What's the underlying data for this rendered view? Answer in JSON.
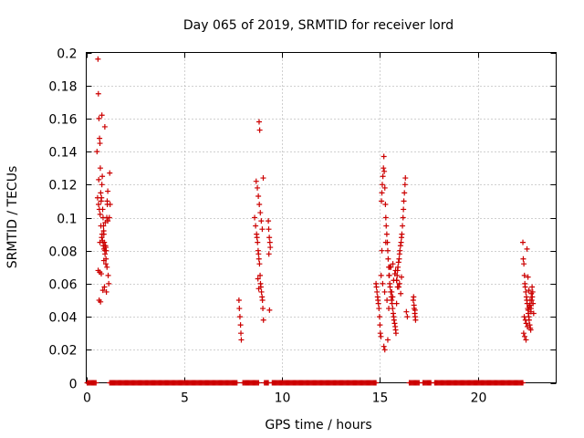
{
  "chart_data": {
    "type": "scatter",
    "title": "Day 065 of 2019, SRMTID for receiver lord",
    "xlabel": "GPS time / hours",
    "ylabel": "SRMTID / TECUs",
    "xlim": [
      0,
      24
    ],
    "ylim": [
      0,
      0.2
    ],
    "xticks": [
      0,
      5,
      10,
      15,
      20
    ],
    "xtick_labels": [
      "0",
      "5",
      "10",
      "15",
      "20"
    ],
    "yticks": [
      0,
      0.02,
      0.04,
      0.06,
      0.08,
      0.1,
      0.12,
      0.14,
      0.16,
      0.18,
      0.2
    ],
    "ytick_labels": [
      "0",
      "0.02",
      "0.04",
      "0.06",
      "0.08",
      "0.1",
      "0.12",
      "0.14",
      "0.16",
      "0.18",
      "0.2"
    ],
    "grid": true,
    "legend": "none",
    "marker": "plus",
    "marker_color": "#cc0000",
    "series": [
      {
        "x": [
          0.55,
          0.6,
          0.62,
          0.65,
          0.68,
          0.7,
          0.72,
          0.74,
          0.76,
          0.78,
          0.8,
          0.82,
          0.84,
          0.86,
          0.88,
          0.9,
          0.92,
          0.95,
          0.98,
          1.0,
          1.02,
          1.05,
          1.08,
          1.1,
          1.12,
          1.15,
          1.2,
          0.58,
          0.63,
          0.67,
          0.71,
          0.75,
          0.79,
          0.83,
          0.87,
          0.91,
          0.96,
          1.01,
          1.06,
          0.61,
          0.69,
          0.77,
          0.85,
          0.93,
          1.03,
          0.66,
          0.73,
          0.81,
          0.89,
          0.97,
          1.07,
          1.18,
          1.22,
          0.64,
          0.8,
          0.95,
          1.1,
          0.7,
          0.9,
          1.0
        ],
        "y": [
          0.14,
          0.196,
          0.175,
          0.16,
          0.148,
          0.145,
          0.13,
          0.115,
          0.11,
          0.112,
          0.12,
          0.125,
          0.105,
          0.1,
          0.095,
          0.09,
          0.085,
          0.08,
          0.083,
          0.082,
          0.08,
          0.1,
          0.108,
          0.098,
          0.065,
          0.06,
          0.127,
          0.112,
          0.108,
          0.105,
          0.102,
          0.095,
          0.088,
          0.086,
          0.083,
          0.081,
          0.078,
          0.075,
          0.07,
          0.068,
          0.067,
          0.066,
          0.056,
          0.058,
          0.055,
          0.05,
          0.049,
          0.09,
          0.092,
          0.097,
          0.11,
          0.1,
          0.108,
          0.123,
          0.162,
          0.155,
          0.116,
          0.085,
          0.074,
          0.072
        ]
      },
      {
        "x": [
          7.8,
          7.82,
          7.85,
          7.88,
          7.9,
          7.92,
          8.6,
          8.65,
          8.7,
          8.72,
          8.75,
          8.78,
          8.8,
          8.82,
          8.85,
          8.88,
          8.9,
          8.92,
          8.95,
          8.98,
          9.0,
          9.02,
          9.05,
          8.68,
          8.74,
          8.79,
          8.84,
          8.89,
          8.94,
          8.99,
          9.3,
          9.32,
          9.35,
          9.38,
          9.4,
          9.33,
          9.36,
          8.83,
          8.86,
          9.04,
          8.77,
          8.81
        ],
        "y": [
          0.05,
          0.045,
          0.04,
          0.035,
          0.03,
          0.026,
          0.1,
          0.095,
          0.09,
          0.088,
          0.085,
          0.08,
          0.078,
          0.075,
          0.072,
          0.065,
          0.06,
          0.058,
          0.055,
          0.052,
          0.05,
          0.045,
          0.038,
          0.122,
          0.118,
          0.113,
          0.108,
          0.103,
          0.098,
          0.093,
          0.098,
          0.093,
          0.088,
          0.085,
          0.082,
          0.078,
          0.044,
          0.158,
          0.153,
          0.124,
          0.063,
          0.057
        ]
      },
      {
        "x": [
          14.8,
          14.82,
          14.85,
          14.88,
          14.9,
          14.92,
          14.95,
          14.98,
          15.0,
          15.02,
          15.05,
          15.08,
          15.1,
          15.12,
          15.15,
          15.18,
          15.2,
          15.22,
          15.25,
          15.28,
          15.3,
          15.32,
          15.35,
          15.38,
          15.4,
          15.42,
          15.45,
          15.48,
          15.5,
          15.52,
          15.55,
          15.58,
          15.6,
          15.62,
          15.65,
          15.68,
          15.7,
          15.72,
          15.75,
          15.78,
          15.8,
          15.82,
          15.85,
          15.88,
          15.9,
          15.92,
          15.95,
          15.98,
          16.0,
          16.02,
          16.05,
          16.08,
          16.1,
          16.12,
          16.15,
          16.18,
          16.2,
          16.22,
          16.25,
          16.28,
          16.3,
          16.35,
          16.4,
          15.06,
          15.14,
          15.24,
          15.36,
          15.46,
          15.56,
          15.66,
          15.76,
          15.86,
          15.96,
          16.06,
          15.2,
          15.4,
          15.6,
          15.8,
          16.0,
          15.1,
          15.3,
          15.5,
          15.7,
          15.9,
          16.1,
          15.25,
          15.45,
          15.65,
          15.85,
          16.7,
          16.72,
          16.75,
          16.78,
          16.8,
          16.82,
          16.74,
          16.79
        ],
        "y": [
          0.06,
          0.058,
          0.055,
          0.052,
          0.05,
          0.048,
          0.045,
          0.04,
          0.035,
          0.03,
          0.028,
          0.11,
          0.115,
          0.12,
          0.125,
          0.13,
          0.137,
          0.128,
          0.118,
          0.108,
          0.1,
          0.095,
          0.09,
          0.085,
          0.08,
          0.075,
          0.07,
          0.065,
          0.06,
          0.058,
          0.055,
          0.052,
          0.05,
          0.048,
          0.045,
          0.042,
          0.04,
          0.038,
          0.036,
          0.034,
          0.032,
          0.03,
          0.062,
          0.065,
          0.068,
          0.07,
          0.073,
          0.075,
          0.078,
          0.08,
          0.083,
          0.085,
          0.088,
          0.09,
          0.095,
          0.1,
          0.105,
          0.11,
          0.115,
          0.12,
          0.124,
          0.043,
          0.04,
          0.065,
          0.06,
          0.055,
          0.05,
          0.065,
          0.07,
          0.072,
          0.066,
          0.062,
          0.058,
          0.054,
          0.022,
          0.026,
          0.055,
          0.068,
          0.06,
          0.08,
          0.085,
          0.07,
          0.062,
          0.058,
          0.064,
          0.02,
          0.045,
          0.052,
          0.048,
          0.05,
          0.052,
          0.045,
          0.042,
          0.04,
          0.038,
          0.047,
          0.044
        ]
      },
      {
        "x": [
          22.3,
          22.32,
          22.35,
          22.38,
          22.4,
          22.42,
          22.45,
          22.48,
          22.5,
          22.52,
          22.55,
          22.58,
          22.6,
          22.62,
          22.65,
          22.68,
          22.7,
          22.72,
          22.75,
          22.78,
          22.8,
          22.82,
          22.85,
          22.37,
          22.43,
          22.47,
          22.53,
          22.57,
          22.63,
          22.67,
          22.73,
          22.77,
          22.34,
          22.39,
          22.46,
          22.51,
          22.56,
          22.61,
          22.66,
          22.71
        ],
        "y": [
          0.085,
          0.075,
          0.072,
          0.065,
          0.06,
          0.058,
          0.055,
          0.052,
          0.05,
          0.048,
          0.045,
          0.042,
          0.04,
          0.038,
          0.035,
          0.033,
          0.032,
          0.045,
          0.05,
          0.052,
          0.055,
          0.048,
          0.042,
          0.04,
          0.038,
          0.036,
          0.034,
          0.044,
          0.046,
          0.05,
          0.054,
          0.058,
          0.03,
          0.028,
          0.026,
          0.081,
          0.064,
          0.056,
          0.047,
          0.043
        ]
      },
      {
        "x_ranges": [
          [
            0.05,
            0.5
          ],
          [
            1.2,
            7.7
          ],
          [
            8.0,
            8.8
          ],
          [
            9.1,
            9.3
          ],
          [
            9.5,
            14.8
          ],
          [
            16.5,
            17.0
          ],
          [
            17.2,
            17.6
          ],
          [
            17.8,
            22.3
          ]
        ],
        "y": 0
      }
    ]
  }
}
